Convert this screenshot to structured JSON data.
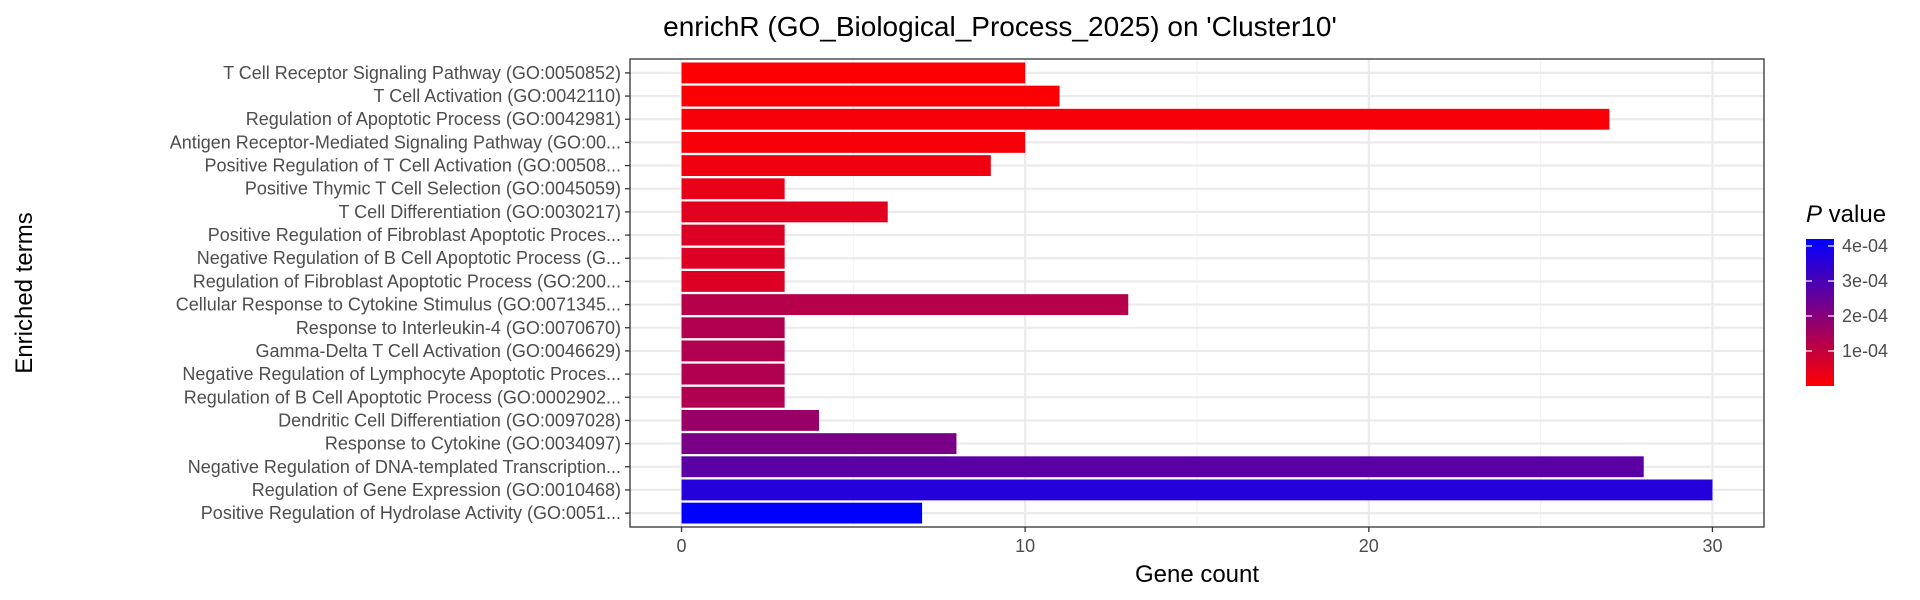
{
  "chart_data": {
    "type": "bar",
    "orientation": "horizontal",
    "title": "enrichR (GO_Biological_Process_2025) on 'Cluster10'",
    "xlabel": "Gene count",
    "ylabel": "Enriched terms",
    "xlim": [
      -1.5,
      31.5
    ],
    "x_ticks": [
      0,
      10,
      20,
      30
    ],
    "grid": true,
    "categories": [
      "T Cell Receptor Signaling Pathway (GO:0050852)",
      "T Cell Activation (GO:0042110)",
      "Regulation of Apoptotic Process (GO:0042981)",
      "Antigen Receptor-Mediated Signaling Pathway (GO:00...",
      "Positive Regulation of T Cell Activation (GO:00508...",
      "Positive Thymic T Cell Selection (GO:0045059)",
      "T Cell Differentiation (GO:0030217)",
      "Positive Regulation of Fibroblast Apoptotic Proces...",
      "Negative Regulation of B Cell Apoptotic Process (G...",
      "Regulation of Fibroblast Apoptotic Process (GO:200...",
      "Cellular Response to Cytokine Stimulus (GO:0071345...",
      "Response to Interleukin-4 (GO:0070670)",
      "Gamma-Delta T Cell Activation (GO:0046629)",
      "Negative Regulation of Lymphocyte Apoptotic Proces...",
      "Regulation of B Cell Apoptotic Process (GO:0002902...",
      "Dendritic Cell Differentiation (GO:0097028)",
      "Response to Cytokine (GO:0034097)",
      "Negative Regulation of DNA-templated Transcription...",
      "Regulation of Gene Expression (GO:0010468)",
      "Positive Regulation of Hydrolase Activity (GO:0051..."
    ],
    "values": [
      10,
      11,
      27,
      10,
      9,
      3,
      6,
      3,
      3,
      3,
      13,
      3,
      3,
      3,
      3,
      4,
      8,
      28,
      30,
      7
    ],
    "p_values": [
      5e-06,
      8e-06,
      1.2e-05,
      1.5e-05,
      2.5e-05,
      4e-05,
      5e-05,
      6e-05,
      6e-05,
      6e-05,
      0.00012,
      0.00013,
      0.00013,
      0.00013,
      0.00013,
      0.00017,
      0.00022,
      0.00027,
      0.00036,
      0.00042
    ],
    "legend": {
      "title_italic": "P",
      "title_rest": " value",
      "placement": "right",
      "range": [
        0,
        0.00042
      ],
      "ticks": [
        {
          "value": 0.0001,
          "label": "1e-04"
        },
        {
          "value": 0.0002,
          "label": "2e-04"
        },
        {
          "value": 0.0003,
          "label": "3e-04"
        },
        {
          "value": 0.0004,
          "label": "4e-04"
        }
      ],
      "color_low": "#ff0000",
      "color_high": "#0000ff"
    }
  }
}
